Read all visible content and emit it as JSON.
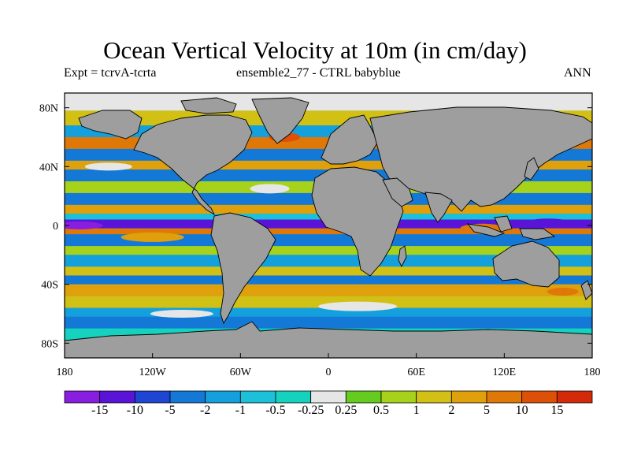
{
  "title": "Ocean Vertical Velocity at 10m (in cm/day)",
  "subtitle_left": "Expt = tcrvA-tcrta",
  "subtitle_center": "ensemble2_77 - CTRL babyblue",
  "subtitle_right": "ANN",
  "axes": {
    "lat_ticks": [
      "80N",
      "40N",
      "0",
      "40S",
      "80S"
    ],
    "lon_ticks": [
      "180",
      "120W",
      "60W",
      "0",
      "60E",
      "120E",
      "180"
    ],
    "lat_range": [
      -90,
      90
    ],
    "lon_range": [
      -180,
      180
    ]
  },
  "colorbar": {
    "labels": [
      "-15",
      "-10",
      "-5",
      "-2",
      "-1",
      "-0.5",
      "-0.25",
      "0.25",
      "0.5",
      "1",
      "2",
      "5",
      "10",
      "15"
    ],
    "colors": [
      "#8a1ee0",
      "#5a14d8",
      "#1e46d2",
      "#1478d6",
      "#14a0dc",
      "#1cc0d8",
      "#14d2be",
      "#e6e6e6",
      "#64cc1e",
      "#a6d21c",
      "#d2c014",
      "#e0a00c",
      "#e07808",
      "#dc5008",
      "#d42a0a"
    ]
  },
  "land_color": "#9e9e9e"
}
